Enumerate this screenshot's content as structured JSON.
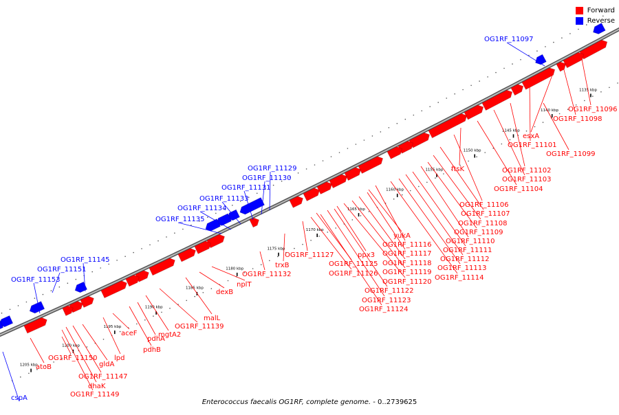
{
  "title_species": "Enterococcus faecalis OG1RF, complete genome.",
  "title_range": " - 0..2739625",
  "legend": {
    "forward_label": "Forward",
    "reverse_label": "Reverse",
    "forward_color": "#ff0000",
    "reverse_color": "#0000ff"
  },
  "axis": {
    "unit": "kbp",
    "ticks": [
      1135,
      1140,
      1145,
      1150,
      1155,
      1160,
      1165,
      1170,
      1175,
      1180,
      1185,
      1190,
      1195,
      1200,
      1205
    ],
    "tick_labels": [
      "1135 kbp",
      "1140 kbp",
      "1145 kbp",
      "1150 kbp",
      "1155 kbp",
      "1160 kbp",
      "1165 kbp",
      "1170 kbp",
      "1175 kbp",
      "1180 kbp",
      "1185 kbp",
      "1190 kbp",
      "1195 kbp",
      "1200 kbp",
      "1205 kbp"
    ]
  },
  "genes": {
    "reverse": [
      "OG1RF_11097",
      "OG1RF_11129",
      "OG1RF_11130",
      "OG1RF_11131",
      "OG1RF_11133",
      "OG1RF_11134",
      "OG1RF_11135",
      "OG1RF_11145",
      "OG1RF_11151",
      "OG1RF_11153",
      "cspA"
    ],
    "forward": [
      "OG1RF_11096",
      "OG1RF_11098",
      "esxA",
      "OG1RF_11101",
      "OG1RF_11099",
      "OG1RF_11102",
      "OG1RF_11103",
      "OG1RF_11104",
      "ftsK",
      "OG1RF_11106",
      "OG1RF_11107",
      "OG1RF_11108",
      "OG1RF_11109",
      "OG1RF_11110",
      "OG1RF_11111",
      "OG1RF_11112",
      "OG1RF_11113",
      "OG1RF_11114",
      "yukA",
      "OG1RF_11116",
      "OG1RF_11117",
      "OG1RF_11118",
      "OG1RF_11119",
      "OG1RF_11120",
      "ppx3",
      "OG1RF_11122",
      "OG1RF_11123",
      "OG1RF_11124",
      "OG1RF_11125",
      "OG1RF_11126",
      "OG1RF_11127",
      "trxB",
      "OG1RF_11132",
      "nplT",
      "dexB",
      "malL",
      "OG1RF_11139",
      "mgtA2",
      "pdhA",
      "pdhB",
      "aceF",
      "lpd",
      "gldA",
      "OG1RF_11147",
      "dhaK",
      "OG1RF_11149",
      "OG1RF_11150",
      "atoB"
    ]
  }
}
